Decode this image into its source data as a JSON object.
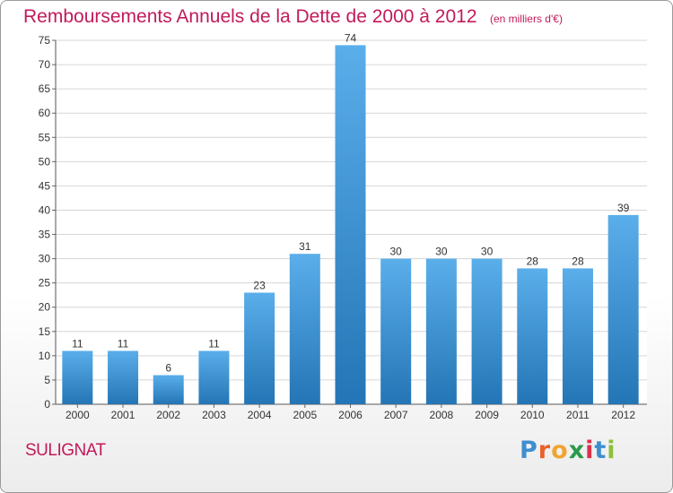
{
  "header": {
    "title": "Remboursements Annuels de la Dette de 2000 à 2012",
    "unit": "(en milliers d'€)"
  },
  "footer": {
    "commune": "SULIGNAT",
    "logo": "Proxiti",
    "logo_colors": [
      "#3e8ed0",
      "#e8622a",
      "#f0a531",
      "#2a9a4a",
      "#d8324a",
      "#3e8ed0",
      "#8fbf3a"
    ]
  },
  "chart_data": {
    "type": "bar",
    "title": "Remboursements Annuels de la Dette de 2000 à 2012",
    "unit": "(en milliers d'€)",
    "categories": [
      "2000",
      "2001",
      "2002",
      "2003",
      "2004",
      "2005",
      "2006",
      "2007",
      "2008",
      "2009",
      "2010",
      "2011",
      "2012"
    ],
    "values": [
      11,
      11,
      6,
      11,
      23,
      31,
      74,
      30,
      30,
      30,
      28,
      28,
      39
    ],
    "ylim": [
      0,
      75
    ],
    "yticks": [
      0,
      5,
      10,
      15,
      20,
      25,
      30,
      35,
      40,
      45,
      50,
      55,
      60,
      65,
      70,
      75
    ],
    "grid": true,
    "bar_color_top": "#5aaeea",
    "bar_color_bottom": "#2475b5"
  }
}
